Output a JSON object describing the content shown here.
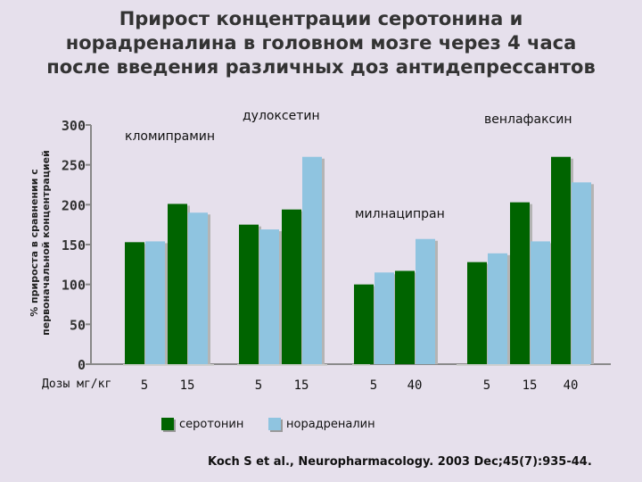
{
  "title_lines": [
    "Прирост концентрации серотонина и",
    "норадреналина в головном мозге через 4 часа",
    "после введения различных доз антидепрессантов"
  ],
  "citation": "Koch S et al., Neuropharmacology. 2003 Dec;45(7):935-44.",
  "colors": {
    "serotonin": "#006400",
    "noradrenaline": "#8fc4e0",
    "background": "#e6e0ec",
    "text": "#111111"
  },
  "chart_data": {
    "type": "bar",
    "title": "Прирост концентрации серотонина и норадреналина в головном мозге через 4 часа после введения различных доз антидепрессантов",
    "ylabel_lines": [
      "% прироста в сравнении с",
      "первоначальной концентрацией"
    ],
    "xlabel": "Дозы мг/кг",
    "ylim": [
      0,
      300
    ],
    "yticks": [
      0,
      50,
      100,
      150,
      200,
      250,
      300
    ],
    "grid": false,
    "legend_position": "bottom",
    "series": [
      {
        "name": "серотонин",
        "color": "#006400"
      },
      {
        "name": "норадреналин",
        "color": "#8fc4e0"
      }
    ],
    "groups": [
      {
        "drug": "кломипрамин",
        "doses": [
          {
            "dose": "5",
            "values": [
              153,
              154
            ]
          },
          {
            "dose": "15",
            "values": [
              201,
              190
            ]
          }
        ]
      },
      {
        "drug": "дулоксетин",
        "doses": [
          {
            "dose": "5",
            "values": [
              175,
              169
            ]
          },
          {
            "dose": "15",
            "values": [
              194,
              260
            ]
          }
        ]
      },
      {
        "drug": "милнаципран",
        "doses": [
          {
            "dose": "5",
            "values": [
              100,
              115
            ]
          },
          {
            "dose": "40",
            "values": [
              117,
              157
            ]
          }
        ]
      },
      {
        "drug": "венлафаксин",
        "doses": [
          {
            "dose": "5",
            "values": [
              128,
              139
            ]
          },
          {
            "dose": "15",
            "values": [
              203,
              154
            ]
          },
          {
            "dose": "40",
            "values": [
              260,
              228
            ]
          }
        ]
      }
    ]
  }
}
